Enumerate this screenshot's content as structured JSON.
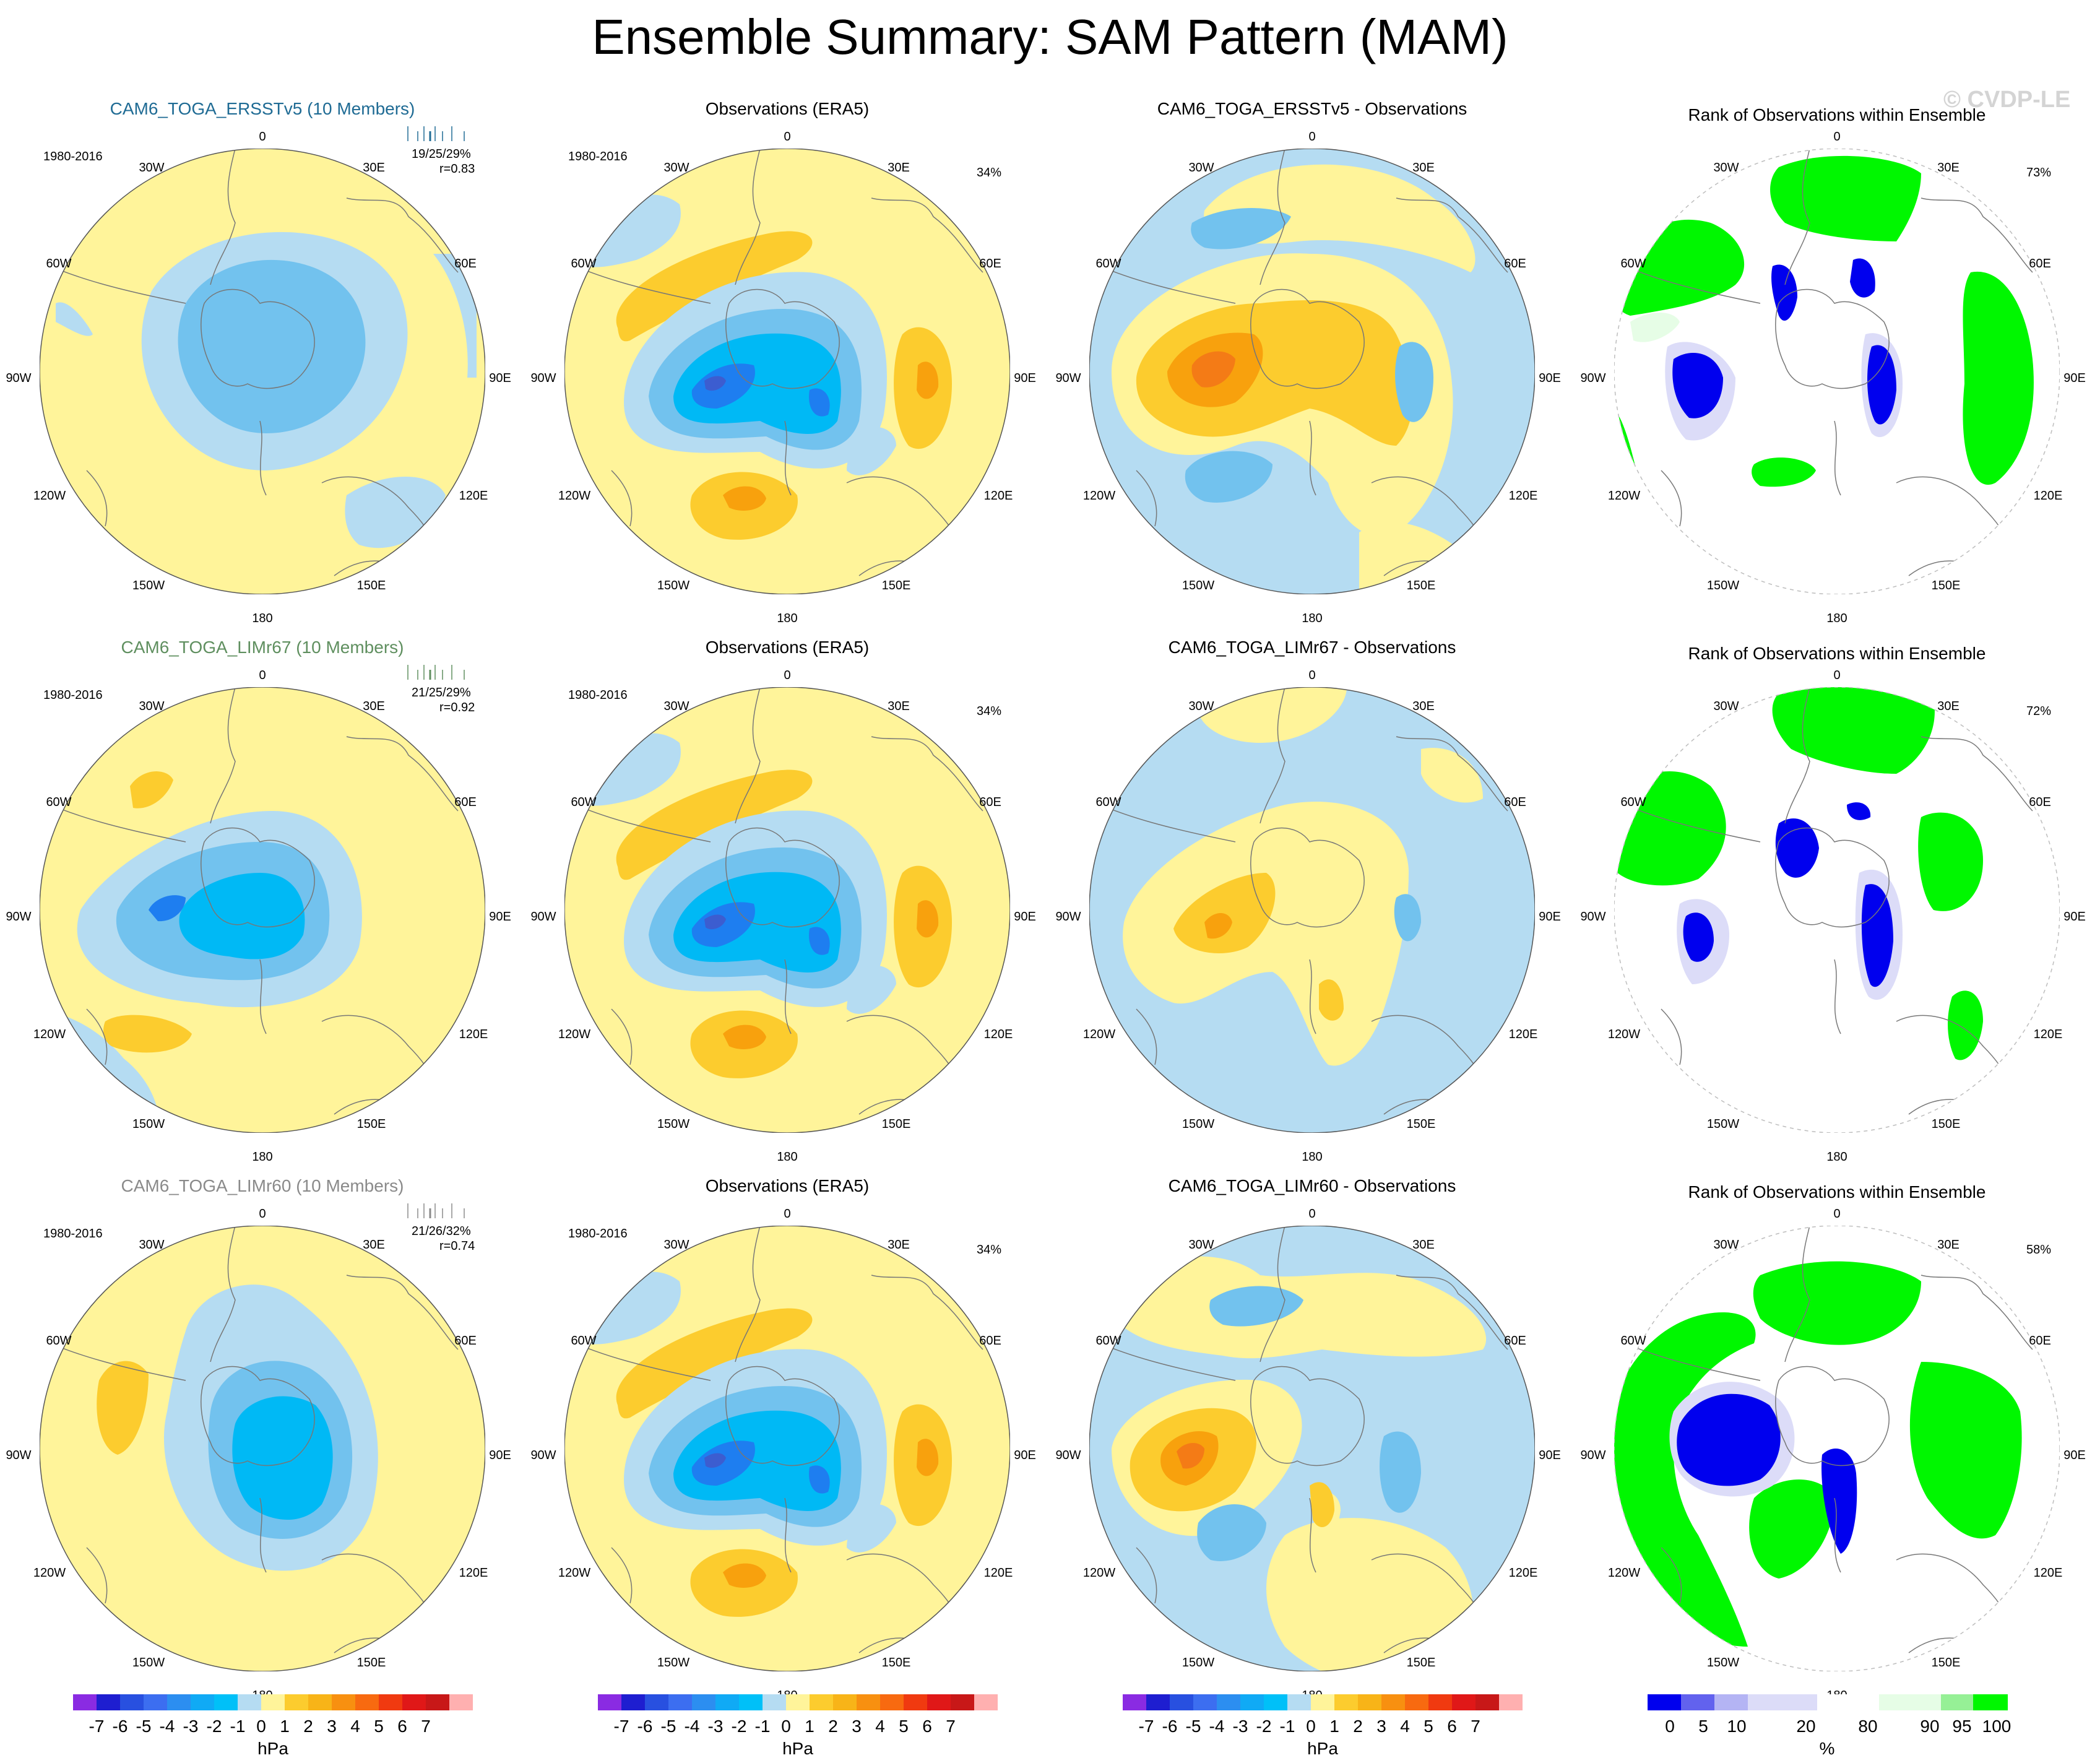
{
  "title": "Ensemble Summary: SAM Pattern (MAM)",
  "watermark": "© CVDP-LE",
  "colors": {
    "pos1": "#fff49a",
    "pos2": "#fccc2e",
    "pos3": "#f8a10d",
    "pos4": "#f47b16",
    "neg1": "#b5dcf2",
    "neg2": "#72c2ee",
    "neg3": "#00b9f5",
    "neg4": "#1e7ef0",
    "neg5": "#3c5dd0",
    "green": "#00f700",
    "paleGreen": "#e6fde6",
    "blue": "#0000ee",
    "paleBlue": "#dcdcf8",
    "coast": "#777777"
  },
  "rows": [
    {
      "model": {
        "title": "CAM6_TOGA_ERSSTv5 (10 Members)",
        "title_color": "#1f6b94",
        "period": "1980-2016",
        "stats": "19/25/29%",
        "corr": "r=0.83"
      },
      "obs": {
        "title": "Observations (ERA5)",
        "period": "1980-2016",
        "pct": "34%"
      },
      "diff": {
        "title": "CAM6_TOGA_ERSSTv5 - Observations"
      },
      "rank": {
        "title": "Rank of Observations within Ensemble",
        "pct": "73%"
      }
    },
    {
      "model": {
        "title": "CAM6_TOGA_LIMr67 (10 Members)",
        "title_color": "#5f8f5f",
        "period": "1980-2016",
        "stats": "21/25/29%",
        "corr": "r=0.92"
      },
      "obs": {
        "title": "Observations (ERA5)",
        "period": "1980-2016",
        "pct": "34%"
      },
      "diff": {
        "title": "CAM6_TOGA_LIMr67 - Observations"
      },
      "rank": {
        "title": "Rank of Observations within Ensemble",
        "pct": "72%"
      }
    },
    {
      "model": {
        "title": "CAM6_TOGA_LIMr60 (10 Members)",
        "title_color": "#8a8a8a",
        "period": "1980-2016",
        "stats": "21/26/32%",
        "corr": "r=0.74"
      },
      "obs": {
        "title": "Observations (ERA5)",
        "period": "1980-2016",
        "pct": "34%"
      },
      "diff": {
        "title": "CAM6_TOGA_LIMr60 - Observations"
      },
      "rank": {
        "title": "Rank of Observations within Ensemble",
        "pct": "58%"
      }
    }
  ],
  "lon_labels": {
    "top": "0",
    "n30w": "30W",
    "n30e": "30E",
    "n60w": "60W",
    "n60e": "60E",
    "n90w": "90W",
    "n90e": "90E",
    "n120w": "120W",
    "n120e": "120E",
    "n150w": "150W",
    "n150e": "150E",
    "bottom": "180"
  },
  "colorbar_hpa": {
    "unit": "hPa",
    "labels": [
      "-7",
      "-6",
      "-5",
      "-4",
      "-3",
      "-2",
      "-1",
      "0",
      "1",
      "2",
      "3",
      "4",
      "5",
      "6",
      "7"
    ],
    "colors": [
      "#8a2be2",
      "#1e1ed0",
      "#2850e0",
      "#3c6ef0",
      "#2c8ef0",
      "#10aaf5",
      "#00c0f8",
      "#b5dcf2",
      "#fff49a",
      "#fccc2e",
      "#f8b418",
      "#f89010",
      "#f86a10",
      "#f03a10",
      "#e01818",
      "#c81818",
      "#ffb0b0"
    ]
  },
  "colorbar_rank": {
    "unit": "%",
    "labels": [
      "0",
      "5",
      "10",
      "20",
      "80",
      "90",
      "95",
      "100"
    ],
    "colors": [
      "#0000ee",
      "#6262ee",
      "#b4b4f4",
      "#dcdcf8",
      "#ffffff",
      "#e6fde6",
      "#96f096",
      "#00f700"
    ]
  }
}
